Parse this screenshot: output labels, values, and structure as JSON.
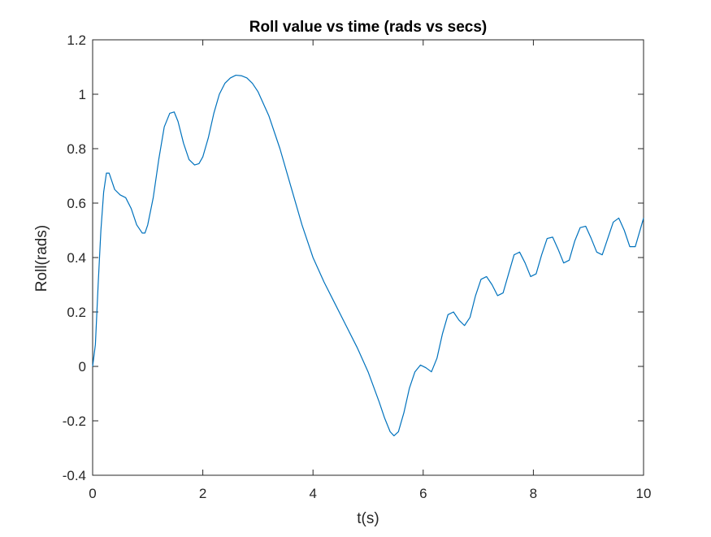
{
  "chart_data": {
    "type": "line",
    "title": "Roll value vs time (rads vs secs)",
    "xlabel": "t(s)",
    "ylabel": "Roll(rads)",
    "xlim": [
      0,
      10
    ],
    "ylim": [
      -0.4,
      1.2
    ],
    "xticks": [
      0,
      2,
      4,
      6,
      8,
      10
    ],
    "xtick_labels": [
      "0",
      "2",
      "4",
      "6",
      "8",
      "10"
    ],
    "yticks": [
      -0.4,
      -0.2,
      0,
      0.2,
      0.4,
      0.6,
      0.8,
      1.0,
      1.2
    ],
    "ytick_labels": [
      "-0.4",
      "-0.2",
      "0",
      "0.2",
      "0.4",
      "0.6",
      "0.8",
      "1",
      "1.2"
    ],
    "grid": false,
    "line_color": "#0072BD",
    "series": [
      {
        "x": [
          0,
          0.05,
          0.1,
          0.15,
          0.2,
          0.25,
          0.3,
          0.35,
          0.4,
          0.5,
          0.6,
          0.7,
          0.8,
          0.9,
          0.95,
          1.0,
          1.1,
          1.2,
          1.3,
          1.4,
          1.48,
          1.55,
          1.65,
          1.75,
          1.85,
          1.93,
          2.0,
          2.1,
          2.2,
          2.3,
          2.4,
          2.5,
          2.6,
          2.7,
          2.8,
          2.9,
          3.0,
          3.2,
          3.4,
          3.6,
          3.8,
          4.0,
          4.2,
          4.4,
          4.6,
          4.8,
          5.0,
          5.2,
          5.3,
          5.4,
          5.47,
          5.55,
          5.65,
          5.75,
          5.85,
          5.95,
          6.05,
          6.15,
          6.25,
          6.35,
          6.45,
          6.55,
          6.65,
          6.75,
          6.85,
          6.95,
          7.05,
          7.15,
          7.25,
          7.35,
          7.45,
          7.55,
          7.65,
          7.75,
          7.85,
          7.95,
          8.05,
          8.15,
          8.25,
          8.35,
          8.45,
          8.55,
          8.65,
          8.75,
          8.85,
          8.95,
          9.05,
          9.15,
          9.25,
          9.35,
          9.45,
          9.55,
          9.65,
          9.75,
          9.85,
          9.95,
          10.0
        ],
        "y": [
          0.0,
          0.08,
          0.3,
          0.5,
          0.64,
          0.71,
          0.71,
          0.68,
          0.65,
          0.63,
          0.62,
          0.58,
          0.52,
          0.49,
          0.49,
          0.52,
          0.62,
          0.76,
          0.88,
          0.93,
          0.935,
          0.9,
          0.82,
          0.76,
          0.74,
          0.745,
          0.77,
          0.84,
          0.93,
          1.0,
          1.04,
          1.06,
          1.07,
          1.068,
          1.06,
          1.04,
          1.01,
          0.92,
          0.8,
          0.66,
          0.52,
          0.4,
          0.31,
          0.23,
          0.15,
          0.07,
          -0.02,
          -0.13,
          -0.19,
          -0.24,
          -0.255,
          -0.24,
          -0.17,
          -0.08,
          -0.02,
          0.005,
          -0.005,
          -0.02,
          0.03,
          0.12,
          0.19,
          0.2,
          0.17,
          0.15,
          0.18,
          0.26,
          0.32,
          0.33,
          0.3,
          0.26,
          0.27,
          0.34,
          0.41,
          0.42,
          0.38,
          0.33,
          0.34,
          0.41,
          0.47,
          0.475,
          0.43,
          0.38,
          0.39,
          0.46,
          0.51,
          0.515,
          0.47,
          0.42,
          0.41,
          0.47,
          0.53,
          0.545,
          0.5,
          0.44,
          0.44,
          0.51,
          0.545
        ]
      }
    ]
  }
}
